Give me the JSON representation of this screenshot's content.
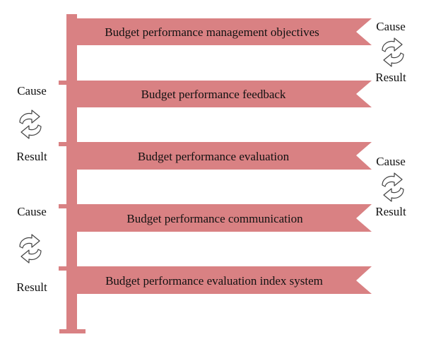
{
  "diagram": {
    "colors": {
      "ribbon": "#d98183",
      "pole": "#d98183",
      "text": "#111111",
      "icon_stroke": "#444444"
    },
    "stages": [
      {
        "label": "Budget performance management objectives"
      },
      {
        "label": "Budget performance feedback"
      },
      {
        "label": "Budget performance evaluation"
      },
      {
        "label": "Budget performance communication"
      },
      {
        "label": "Budget performance evaluation index system"
      }
    ],
    "cycles": [
      {
        "cause": "Cause",
        "result": "Result",
        "icon": "cycle-arrows-icon"
      },
      {
        "cause": "Cause",
        "result": "Result",
        "icon": "cycle-arrows-icon"
      },
      {
        "cause": "Cause",
        "result": "Result",
        "icon": "cycle-arrows-icon"
      },
      {
        "cause": "Cause",
        "result": "Result",
        "icon": "cycle-arrows-icon"
      }
    ]
  }
}
